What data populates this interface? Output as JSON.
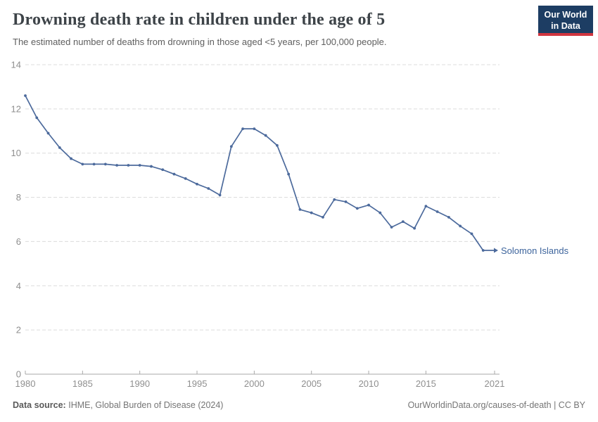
{
  "header": {
    "title": "Drowning death rate in children under the age of 5",
    "subtitle": "The estimated number of deaths from drowning in those aged <5 years, per 100,000 people."
  },
  "logo": {
    "line1": "Our World",
    "line2": "in Data"
  },
  "chart_data": {
    "type": "line",
    "title": "Drowning death rate in children under the age of 5",
    "subtitle": "The estimated number of deaths from drowning in those aged <5 years, per 100,000 people.",
    "xlabel": "",
    "ylabel": "",
    "x": [
      1980,
      1981,
      1982,
      1983,
      1984,
      1985,
      1986,
      1987,
      1988,
      1989,
      1990,
      1991,
      1992,
      1993,
      1994,
      1995,
      1996,
      1997,
      1998,
      1999,
      2000,
      2001,
      2002,
      2003,
      2004,
      2005,
      2006,
      2007,
      2008,
      2009,
      2010,
      2011,
      2012,
      2013,
      2014,
      2015,
      2016,
      2017,
      2018,
      2019,
      2020,
      2021
    ],
    "series": [
      {
        "name": "Solomon Islands",
        "values": [
          12.6,
          11.6,
          10.9,
          10.25,
          9.75,
          9.5,
          9.5,
          9.5,
          9.45,
          9.45,
          9.45,
          9.4,
          9.25,
          9.05,
          8.85,
          8.6,
          8.4,
          8.1,
          10.3,
          11.1,
          11.1,
          10.8,
          10.35,
          9.05,
          7.45,
          7.3,
          7.1,
          7.9,
          7.8,
          7.5,
          7.65,
          7.3,
          6.65,
          6.9,
          6.6,
          7.6,
          7.35,
          7.1,
          6.7,
          6.35,
          5.6,
          5.6
        ]
      }
    ],
    "ylim": [
      0,
      14
    ],
    "yticks": [
      0,
      2,
      4,
      6,
      8,
      10,
      12,
      14
    ],
    "xticks": [
      1980,
      1985,
      1990,
      1995,
      2000,
      2005,
      2010,
      2015,
      2021
    ],
    "grid": "horizontal-dashed",
    "legend": "end-of-line-label"
  },
  "footer": {
    "datasource_label": "Data source:",
    "datasource_value": "IHME, Global Burden of Disease (2024)",
    "link": "OurWorldinData.org/causes-of-death | CC BY"
  },
  "colors": {
    "line": "#4c6a9c",
    "series_label": "#3d649c",
    "grid": "#dcdcdc",
    "axis": "#a8a8a8",
    "tick_label": "#8f8f8f",
    "logo_bg": "#1d3d63",
    "logo_accent": "#d1353f"
  }
}
